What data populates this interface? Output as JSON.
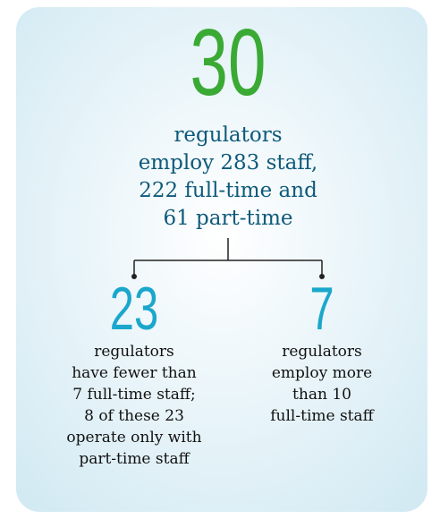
{
  "total": {
    "number": "30",
    "lines": [
      "regulators",
      "employ 283 staff,",
      "222 full-time and",
      "61 part-time"
    ]
  },
  "branches": [
    {
      "number": "23",
      "lines": [
        "regulators",
        "have fewer than",
        "7 full-time staff;",
        "8 of these 23",
        "operate only with",
        "part-time staff"
      ]
    },
    {
      "number": "7",
      "lines": [
        "regulators",
        "employ more",
        "than 10",
        "full-time staff"
      ]
    }
  ]
}
